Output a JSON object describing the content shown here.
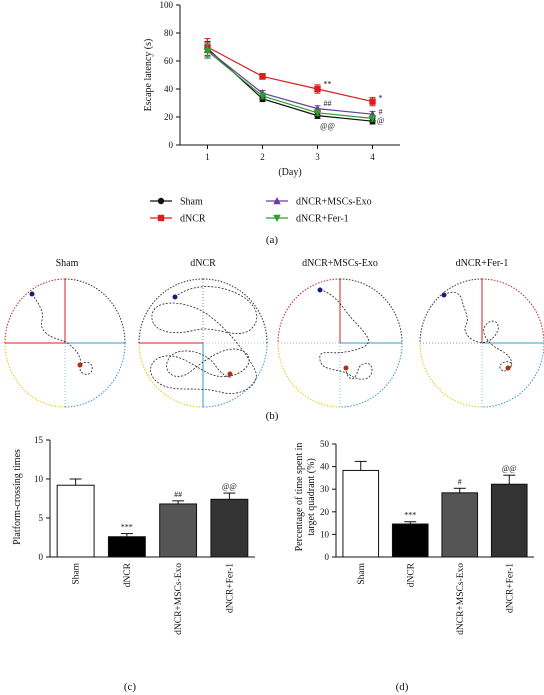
{
  "panels": {
    "a": "(a)",
    "b": "(b)",
    "c": "(c)",
    "d": "(d)"
  },
  "colors": {
    "Sham": "#111111",
    "dNCR": "#d62020",
    "dNCR+MSCs-Exo": "#6a3d9a",
    "dNCR+Fer-1": "#2ca02c",
    "bar_sham": "#ffffff",
    "bar_dncr": "#000000",
    "bar_exo": "#555555",
    "bar_fer": "#333333"
  },
  "tracks": {
    "labels": [
      "Sham",
      "dNCR",
      "dNCR+MSCs-Exo",
      "dNCR+Fer-1"
    ]
  },
  "chart_data": [
    {
      "type": "line",
      "xlabel": "(Day)",
      "ylabel": "Escape latency (s)",
      "x": [
        1,
        2,
        3,
        4
      ],
      "ylim": [
        0,
        100
      ],
      "yticks": [
        0,
        20,
        40,
        60,
        80,
        100
      ],
      "series": [
        {
          "name": "Sham",
          "values": [
            69,
            33,
            21,
            17
          ],
          "err": [
            5,
            2,
            2,
            2
          ],
          "marker": "circle"
        },
        {
          "name": "dNCR",
          "values": [
            70,
            49,
            40,
            31
          ],
          "err": [
            6,
            2,
            3,
            3
          ],
          "marker": "square"
        },
        {
          "name": "dNCR+MSCs-Exo",
          "values": [
            68,
            37,
            26,
            22
          ],
          "err": [
            5,
            2,
            2,
            2
          ],
          "marker": "triangle-up"
        },
        {
          "name": "dNCR+Fer-1",
          "values": [
            67,
            35,
            23,
            19
          ],
          "err": [
            5,
            2,
            2,
            2
          ],
          "marker": "triangle-down"
        }
      ],
      "annotations": [
        {
          "x": 3,
          "y": 44,
          "text": "**"
        },
        {
          "x": 3,
          "y": 30,
          "text": "##"
        },
        {
          "x": 3,
          "y": 14,
          "text": "@@"
        },
        {
          "x": 4,
          "y": 34,
          "text": "*"
        },
        {
          "x": 4,
          "y": 24,
          "text": "#"
        },
        {
          "x": 4,
          "y": 18,
          "text": "@"
        }
      ]
    },
    {
      "type": "bar",
      "ylabel": "Platform-crossing times",
      "categories": [
        "Sham",
        "dNCR",
        "dNCR+MSCs-Exo",
        "dNCR+Fer-1"
      ],
      "values": [
        9.2,
        2.6,
        6.8,
        7.4
      ],
      "err": [
        0.8,
        0.4,
        0.4,
        0.8
      ],
      "sig": [
        "",
        "***",
        "##",
        "@@"
      ],
      "ylim": [
        0,
        15
      ],
      "yticks": [
        0,
        5,
        10,
        15
      ]
    },
    {
      "type": "bar",
      "ylabel": "Percentage of time spent in target quadrant (%)",
      "ylabel_lines": [
        "Percentage of time spent in",
        "target quadrant (%)"
      ],
      "categories": [
        "Sham",
        "dNCR",
        "dNCR+MSCs-Exo",
        "dNCR+Fer-1"
      ],
      "values": [
        38.3,
        14.6,
        28.4,
        32.2
      ],
      "err": [
        4.0,
        1.0,
        2.0,
        4.0
      ],
      "sig": [
        "",
        "***",
        "#",
        "@@"
      ],
      "ylim": [
        0,
        50
      ],
      "yticks": [
        0,
        10,
        20,
        30,
        40,
        50
      ]
    }
  ]
}
